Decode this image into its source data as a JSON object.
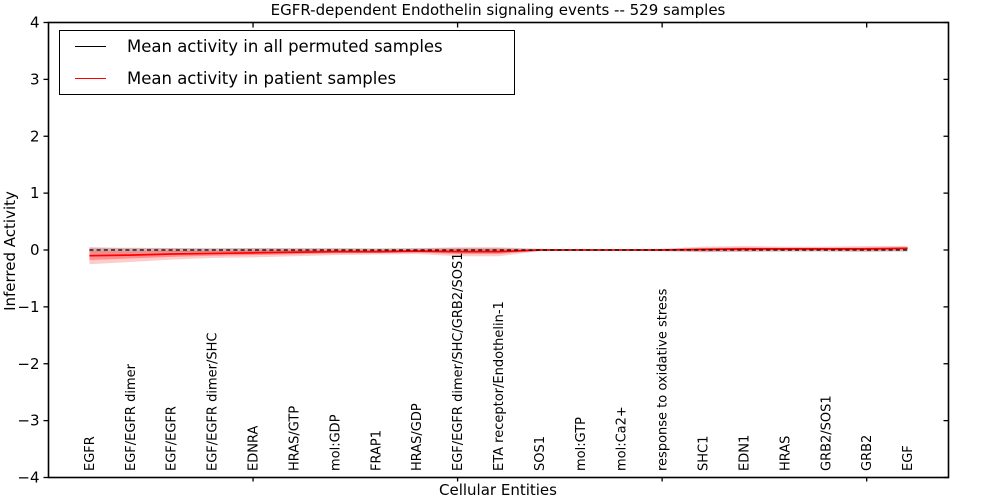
{
  "figure": {
    "title": "EGFR-dependent Endothelin signaling events -- 529 samples",
    "xlabel": "Cellular Entities",
    "ylabel": "Inferred Activity"
  },
  "legend": {
    "items": [
      {
        "label": "Mean activity in all permuted samples",
        "color": "#000000"
      },
      {
        "label": "Mean activity in patient samples",
        "color": "#ff0000"
      }
    ]
  },
  "chart_data": {
    "type": "line",
    "title": "EGFR-dependent Endothelin signaling events -- 529 samples",
    "xlabel": "Cellular Entities",
    "ylabel": "Inferred Activity",
    "ylim": [
      -4,
      4
    ],
    "xlim": [
      0,
      22
    ],
    "grid": false,
    "legend_position": "upper left",
    "yticks": [
      4,
      3,
      2,
      1,
      0,
      -1,
      -2,
      -3,
      -4
    ],
    "xticks": [
      5,
      10,
      15,
      20
    ],
    "categories": [
      "EGFR",
      "EGF/EGFR dimer",
      "EGF/EGFR",
      "EGF/EGFR dimer/SHC",
      "EDNRA",
      "HRAS/GTP",
      "mol:GDP",
      "FRAP1",
      "HRAS/GDP",
      "EGF/EGFR dimer/SHC/GRB2/SOS1",
      "ETA receptor/Endothelin-1",
      "SOS1",
      "mol:GTP",
      "mol:Ca2+",
      "response to oxidative stress",
      "SHC1",
      "EDN1",
      "HRAS",
      "GRB2/SOS1",
      "GRB2",
      "EGF"
    ],
    "x_positions": [
      1,
      2,
      3,
      4,
      5,
      6,
      7,
      8,
      9,
      10,
      11,
      12,
      13,
      14,
      15,
      16,
      17,
      18,
      19,
      20,
      21
    ],
    "series": [
      {
        "name": "Mean activity in all permuted samples",
        "color": "#000000",
        "line_style": "dashed",
        "values": [
          0,
          0,
          0,
          0,
          0,
          0,
          0,
          0,
          0,
          0,
          0,
          0,
          0,
          0,
          0,
          0,
          0,
          0,
          0,
          0,
          0
        ],
        "band_halfwidth": [
          0.04,
          0.04,
          0.035,
          0.035,
          0.035,
          0.03,
          0.03,
          0.03,
          0.03,
          0.035,
          0.035,
          0.02,
          0.015,
          0.015,
          0.02,
          0.03,
          0.03,
          0.03,
          0.03,
          0.03,
          0.03
        ],
        "band_color": "rgba(0,0,0,0.16)"
      },
      {
        "name": "Mean activity in patient samples",
        "color": "#ff0000",
        "line_style": "solid",
        "values": [
          -0.1,
          -0.09,
          -0.07,
          -0.06,
          -0.05,
          -0.04,
          -0.03,
          -0.03,
          -0.02,
          -0.03,
          -0.03,
          0.0,
          0.0,
          0.0,
          0.0,
          0.01,
          0.02,
          0.02,
          0.02,
          0.02,
          0.03
        ],
        "band_halfwidth": [
          0.15,
          0.12,
          0.1,
          0.08,
          0.08,
          0.07,
          0.06,
          0.05,
          0.05,
          0.08,
          0.08,
          0.02,
          0.012,
          0.012,
          0.02,
          0.05,
          0.05,
          0.04,
          0.04,
          0.05,
          0.04
        ],
        "band_color": "rgba(255,0,0,0.20)",
        "inner_band_color": "rgba(255,0,0,0.30)"
      }
    ]
  },
  "colors": {
    "axis": "#000000",
    "background": "#ffffff",
    "permuted_line": "#000000",
    "patient_line": "#ff0000"
  }
}
